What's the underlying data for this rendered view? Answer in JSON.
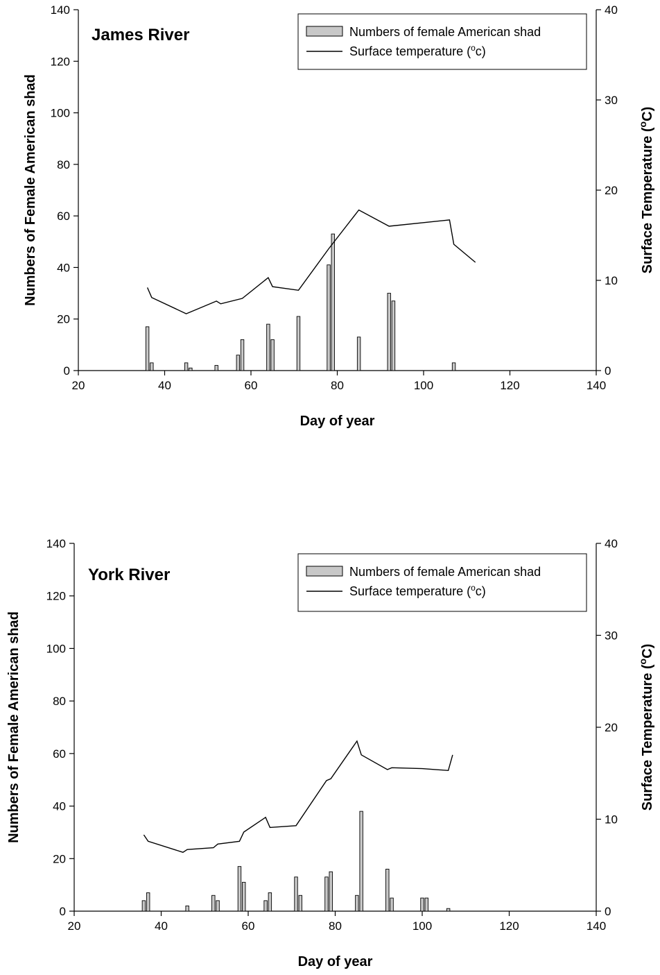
{
  "chart_data": [
    {
      "type": "bar+line",
      "panel_label": "James River",
      "xlabel": "Day of year",
      "ylabel_left": "Numbers of Female American shad",
      "ylabel_right": {
        "text": "Surface Temperature (",
        "sup": "o",
        "tail": "C)"
      },
      "xlim": [
        20,
        140
      ],
      "ylim_left": [
        0,
        140
      ],
      "ylim_right": [
        0,
        40
      ],
      "x_ticks": [
        "20",
        "40",
        "60",
        "80",
        "100",
        "120",
        "140"
      ],
      "y_ticks_left": [
        "0",
        "20",
        "40",
        "60",
        "80",
        "100",
        "120",
        "140"
      ],
      "y_ticks_right": [
        "0",
        "10",
        "20",
        "30",
        "40"
      ],
      "grid": false,
      "legend_position": "top-right",
      "bar_color": "#c8c8c8",
      "line_color": "#000000",
      "series": [
        {
          "name": "Numbers of female American shad",
          "kind": "bar",
          "axis": "left",
          "x": [
            36,
            37,
            45,
            46,
            52,
            57,
            58,
            64,
            65,
            71,
            78,
            79,
            85,
            92,
            93,
            107
          ],
          "y": [
            17,
            3,
            3,
            1,
            2,
            6,
            12,
            18,
            12,
            21,
            41,
            53,
            13,
            30,
            27,
            3
          ]
        },
        {
          "name": {
            "text": "Surface temperature (",
            "sup": "o",
            "tail": "c)"
          },
          "kind": "line",
          "axis": "right",
          "x": [
            36,
            37,
            45,
            52,
            53,
            58,
            64,
            65,
            71,
            78,
            85,
            92,
            106,
            107,
            112
          ],
          "y": [
            9.2,
            8.1,
            6.3,
            7.7,
            7.4,
            8.0,
            10.3,
            9.3,
            8.9,
            13.5,
            17.8,
            16.0,
            16.7,
            14.0,
            12.0
          ]
        }
      ]
    },
    {
      "type": "bar+line",
      "panel_label": "York River",
      "xlabel": "Day of year",
      "ylabel_left": "Numbers of Female American shad",
      "ylabel_right": {
        "text": "Surface Temperature (",
        "sup": "o",
        "tail": "C)"
      },
      "xlim": [
        20,
        140
      ],
      "ylim_left": [
        0,
        140
      ],
      "ylim_right": [
        0,
        40
      ],
      "x_ticks": [
        "20",
        "40",
        "60",
        "80",
        "100",
        "120",
        "140"
      ],
      "y_ticks_left": [
        "0",
        "20",
        "40",
        "60",
        "80",
        "100",
        "120",
        "140"
      ],
      "y_ticks_right": [
        "0",
        "10",
        "20",
        "30",
        "40"
      ],
      "grid": false,
      "legend_position": "top-right",
      "bar_color": "#c8c8c8",
      "line_color": "#000000",
      "series": [
        {
          "name": "Numbers of female American shad",
          "kind": "bar",
          "axis": "left",
          "x": [
            36,
            37,
            46,
            52,
            53,
            58,
            59,
            64,
            65,
            71,
            72,
            78,
            79,
            85,
            86,
            92,
            93,
            100,
            101,
            106
          ],
          "y": [
            4,
            7,
            2,
            6,
            4,
            17,
            11,
            4,
            7,
            13,
            6,
            13,
            15,
            6,
            38,
            16,
            5,
            5,
            5,
            1
          ]
        },
        {
          "name": {
            "text": "Surface temperature (",
            "sup": "o",
            "tail": "c)"
          },
          "kind": "line",
          "axis": "right",
          "x": [
            36,
            37,
            45,
            46,
            52,
            53,
            58,
            59,
            64,
            65,
            71,
            78,
            79,
            85,
            86,
            92,
            93,
            100,
            106,
            107
          ],
          "y": [
            8.3,
            7.6,
            6.4,
            6.7,
            6.9,
            7.3,
            7.6,
            8.6,
            10.2,
            9.1,
            9.3,
            14.2,
            14.4,
            18.5,
            17.0,
            15.4,
            15.6,
            15.5,
            15.3,
            17.0
          ]
        }
      ]
    }
  ]
}
